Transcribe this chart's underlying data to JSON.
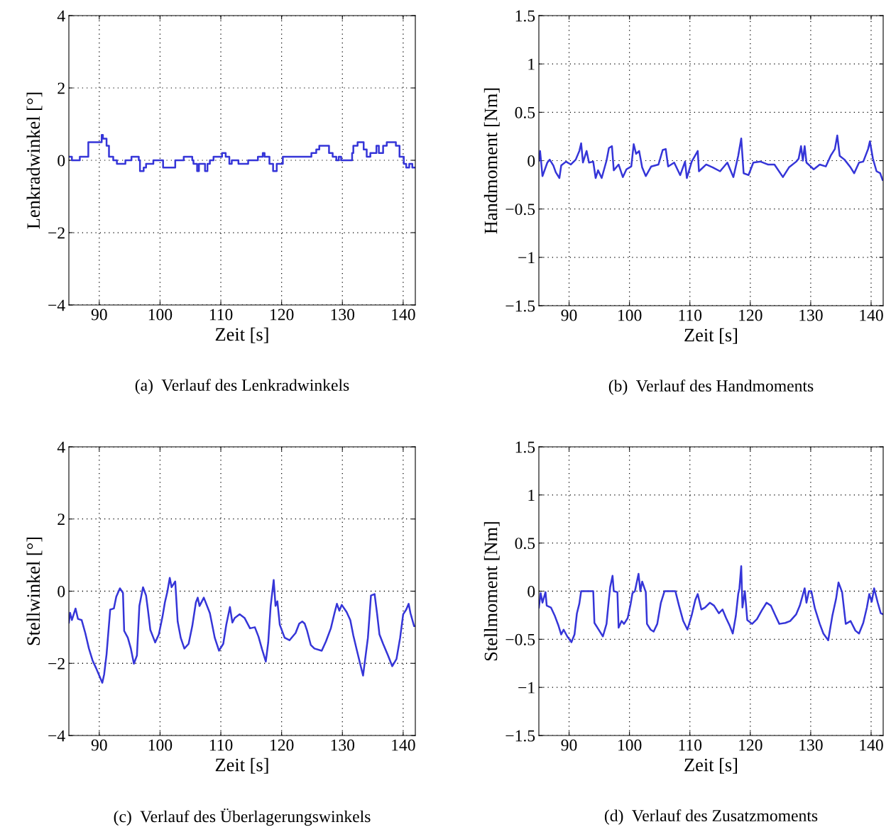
{
  "chart_data": [
    {
      "type": "step",
      "xlabel": "Zeit [s]",
      "ylabel": "Lenkradwinkel [°]",
      "annotations": [
        "(a)  Verlauf des Lenkradwinkels"
      ],
      "xlim": [
        85,
        142
      ],
      "xticks": [
        90,
        100,
        110,
        120,
        130,
        140
      ],
      "ylim": [
        -4,
        4
      ],
      "yticks": [
        -4,
        -2,
        0,
        2,
        4
      ],
      "grid": true,
      "series": [
        {
          "color": "#3535d8",
          "x": [
            85.0,
            85.5,
            86.8,
            88.2,
            90.4,
            90.6,
            91.2,
            91.6,
            92.3,
            92.9,
            94.3,
            95.3,
            96.5,
            96.7,
            97.3,
            97.7,
            98.9,
            100.5,
            102.5,
            103.9,
            105.3,
            105.5,
            106.1,
            106.4,
            107.4,
            107.8,
            108.2,
            108.8,
            110.2,
            110.8,
            111.4,
            111.8,
            112.9,
            114.5,
            116.1,
            116.9,
            117.2,
            118.0,
            118.6,
            119.2,
            120.2,
            124.9,
            125.7,
            126.2,
            127.8,
            128.4,
            129.0,
            129.4,
            129.8,
            131.6,
            131.8,
            132.5,
            133.5,
            134.0,
            134.6,
            135.6,
            136.0,
            136.7,
            137.3,
            138.8,
            139.4,
            140.1,
            140.5,
            141.0,
            141.5,
            142.0
          ],
          "values": [
            0.1,
            0,
            0.1,
            0.5,
            0.7,
            0.6,
            0.4,
            0.1,
            0,
            -0.1,
            0,
            0.1,
            0,
            -0.3,
            -0.2,
            -0.1,
            0,
            -0.2,
            0,
            0.1,
            0,
            -0.1,
            -0.3,
            -0.1,
            -0.3,
            -0.1,
            0,
            0.1,
            0.2,
            0.1,
            -0.1,
            0,
            -0.1,
            0,
            0.1,
            0.2,
            0.1,
            -0.1,
            -0.3,
            -0.1,
            0.1,
            0.2,
            0.3,
            0.4,
            0.2,
            0.1,
            0,
            0.1,
            0,
            0.2,
            0.4,
            0.5,
            0.3,
            0.1,
            0.2,
            0.4,
            0.2,
            0.4,
            0.5,
            0.4,
            0.1,
            -0.1,
            -0.2,
            -0.1,
            -0.2,
            -0.2
          ]
        }
      ]
    },
    {
      "type": "line",
      "xlabel": "Zeit [s]",
      "ylabel": "Handmoment [Nm]",
      "annotations": [
        "(b)  Verlauf des Handmoments"
      ],
      "xlim": [
        85,
        142
      ],
      "xticks": [
        90,
        100,
        110,
        120,
        130,
        140
      ],
      "ylim": [
        -1.5,
        1.5
      ],
      "yticks": [
        -1.5,
        -1,
        -0.5,
        0,
        0.5,
        1,
        1.5
      ],
      "grid": true,
      "series": [
        {
          "color": "#3535d8",
          "x": [
            85.0,
            85.2,
            85.6,
            86.4,
            86.8,
            87.4,
            87.8,
            88.4,
            88.7,
            89.5,
            90.3,
            91.1,
            91.7,
            92.0,
            92.3,
            92.9,
            93.3,
            94.0,
            94.4,
            94.8,
            95.4,
            96.2,
            96.6,
            97.1,
            97.4,
            98.2,
            98.9,
            99.5,
            100.3,
            100.7,
            101.1,
            101.6,
            102.1,
            102.7,
            103.6,
            104.8,
            105.5,
            106.0,
            106.4,
            107.4,
            108.4,
            109.2,
            109.5,
            110.3,
            111.3,
            111.5,
            112.7,
            113.8,
            115.0,
            116.2,
            117.2,
            118.0,
            118.5,
            118.9,
            119.7,
            120.5,
            121.7,
            122.9,
            124.0,
            125.4,
            126.4,
            127.6,
            128.0,
            128.4,
            128.7,
            129.0,
            129.3,
            130.5,
            131.5,
            132.5,
            133.3,
            134.0,
            134.4,
            134.8,
            135.6,
            136.6,
            137.2,
            138.0,
            138.7,
            139.5,
            139.8,
            140.3,
            140.9,
            141.5,
            141.9
          ],
          "values": [
            0,
            0.1,
            -0.16,
            -0.02,
            0.01,
            -0.05,
            -0.12,
            -0.18,
            -0.05,
            -0.01,
            -0.04,
            0.01,
            0.1,
            0.18,
            -0.02,
            0.1,
            -0.02,
            -0.01,
            -0.18,
            -0.1,
            -0.18,
            0,
            0.13,
            0.15,
            -0.1,
            -0.04,
            -0.17,
            -0.09,
            -0.06,
            0.17,
            0.07,
            0.1,
            -0.07,
            -0.16,
            -0.06,
            -0.04,
            0.11,
            0.12,
            -0.06,
            -0.02,
            -0.15,
            -0.01,
            -0.18,
            -0.01,
            0.1,
            -0.11,
            -0.04,
            -0.07,
            -0.11,
            -0.02,
            -0.17,
            0.05,
            0.23,
            -0.13,
            -0.15,
            -0.02,
            -0.01,
            -0.04,
            -0.04,
            -0.17,
            -0.07,
            -0.01,
            0.02,
            0.15,
            0,
            0.15,
            -0.02,
            -0.09,
            -0.04,
            -0.06,
            0.05,
            0.12,
            0.26,
            0.05,
            0.01,
            -0.07,
            -0.13,
            -0.02,
            -0.01,
            0.12,
            0.2,
            0.02,
            -0.11,
            -0.13,
            -0.2
          ]
        }
      ]
    },
    {
      "type": "line",
      "xlabel": "Zeit [s]",
      "ylabel": "Stellwinkel [°]",
      "annotations": [
        "(c)  Verlauf des Überlagerungswinkels"
      ],
      "xlim": [
        85,
        142
      ],
      "xticks": [
        90,
        100,
        110,
        120,
        130,
        140
      ],
      "ylim": [
        -4,
        4
      ],
      "yticks": [
        -4,
        -2,
        0,
        2,
        4
      ],
      "grid": true,
      "series": [
        {
          "color": "#3535d8",
          "x": [
            85.0,
            85.2,
            85.5,
            86.1,
            86.5,
            87.1,
            87.7,
            88.3,
            88.9,
            89.5,
            90.0,
            90.5,
            90.8,
            91.2,
            91.8,
            92.4,
            92.8,
            93.4,
            93.9,
            94.1,
            94.7,
            95.2,
            95.7,
            96.2,
            96.6,
            97.2,
            97.7,
            98.0,
            98.4,
            98.9,
            99.2,
            99.8,
            100.4,
            100.8,
            101.2,
            101.6,
            101.9,
            102.5,
            102.9,
            103.4,
            104.0,
            104.7,
            105.3,
            105.9,
            106.2,
            106.5,
            107.2,
            108.2,
            109.0,
            109.7,
            110.4,
            110.9,
            111.5,
            111.9,
            112.3,
            113.1,
            113.9,
            114.8,
            115.6,
            116.2,
            116.8,
            117.4,
            117.8,
            118.2,
            118.7,
            119.0,
            119.3,
            119.7,
            120.5,
            121.3,
            122.3,
            122.9,
            123.4,
            123.8,
            124.2,
            124.8,
            125.4,
            126.6,
            127.3,
            128.1,
            128.7,
            129.1,
            129.5,
            129.9,
            130.7,
            131.3,
            131.8,
            132.4,
            133.4,
            134.2,
            134.7,
            135.3,
            135.7,
            136.1,
            136.7,
            137.5,
            138.2,
            138.9,
            139.5,
            140.0,
            140.5,
            140.9,
            141.2,
            141.8,
            142.0
          ],
          "values": [
            -0.87,
            -0.6,
            -0.8,
            -0.48,
            -0.77,
            -0.8,
            -1.16,
            -1.59,
            -1.92,
            -2.14,
            -2.34,
            -2.54,
            -2.31,
            -1.75,
            -0.51,
            -0.48,
            -0.15,
            0.08,
            -0.05,
            -1.1,
            -1.29,
            -1.59,
            -2.01,
            -1.78,
            -0.41,
            0.11,
            -0.12,
            -0.51,
            -1.07,
            -1.29,
            -1.42,
            -1.2,
            -0.71,
            -0.31,
            -0.02,
            0.37,
            0.11,
            0.27,
            -0.84,
            -1.29,
            -1.59,
            -1.46,
            -0.97,
            -0.31,
            -0.18,
            -0.41,
            -0.18,
            -0.61,
            -1.29,
            -1.65,
            -1.46,
            -0.93,
            -0.44,
            -0.87,
            -0.74,
            -0.64,
            -0.74,
            -1.03,
            -1.0,
            -1.26,
            -1.62,
            -1.95,
            -1.42,
            -0.41,
            0.31,
            -0.41,
            -0.28,
            -0.93,
            -1.29,
            -1.36,
            -1.16,
            -0.9,
            -0.84,
            -0.9,
            -1.1,
            -1.49,
            -1.59,
            -1.65,
            -1.39,
            -1.03,
            -0.61,
            -0.35,
            -0.54,
            -0.38,
            -0.58,
            -0.8,
            -1.23,
            -1.65,
            -2.34,
            -1.29,
            -0.12,
            -0.08,
            -0.61,
            -1.2,
            -1.46,
            -1.78,
            -2.08,
            -1.88,
            -1.29,
            -0.64,
            -0.51,
            -0.35,
            -0.61,
            -0.97,
            -0.97
          ]
        }
      ]
    },
    {
      "type": "line",
      "xlabel": "Zeit [s]",
      "ylabel": "Stellmoment [Nm]",
      "annotations": [
        "(d)  Verlauf des Zusatzmoments"
      ],
      "xlim": [
        85,
        142
      ],
      "xticks": [
        90,
        100,
        110,
        120,
        130,
        140
      ],
      "ylim": [
        -1.5,
        1.5
      ],
      "yticks": [
        -1.5,
        -1,
        -0.5,
        0,
        0.5,
        1,
        1.5
      ],
      "grid": true,
      "series": [
        {
          "color": "#3535d8",
          "x": [
            85.0,
            85.3,
            85.6,
            86.1,
            86.3,
            87.0,
            87.6,
            88.2,
            88.7,
            89.1,
            89.7,
            90.4,
            90.9,
            91.3,
            91.7,
            92.0,
            94.0,
            94.2,
            94.8,
            95.6,
            96.2,
            96.6,
            96.8,
            97.2,
            97.4,
            98.0,
            98.2,
            98.7,
            99.1,
            99.7,
            100.2,
            100.5,
            100.9,
            101.5,
            101.8,
            102.1,
            102.7,
            102.9,
            103.5,
            104.0,
            104.6,
            105.2,
            105.8,
            107.6,
            108.2,
            108.9,
            109.6,
            110.3,
            110.9,
            111.3,
            111.9,
            112.5,
            113.3,
            114.0,
            114.8,
            115.4,
            116.0,
            116.6,
            117.1,
            117.6,
            118.0,
            118.2,
            118.5,
            118.7,
            119.1,
            119.5,
            120.3,
            121.1,
            121.9,
            122.7,
            123.4,
            124.2,
            124.8,
            125.8,
            126.6,
            127.6,
            128.2,
            129.0,
            129.3,
            129.7,
            130.1,
            130.7,
            131.5,
            132.1,
            132.9,
            133.6,
            134.2,
            134.6,
            135.2,
            135.8,
            136.6,
            137.4,
            138.0,
            138.7,
            139.3,
            139.7,
            140.1,
            140.5,
            141.1,
            141.6,
            142.0
          ],
          "values": [
            -0.17,
            -0.02,
            -0.12,
            -0.01,
            -0.15,
            -0.17,
            -0.25,
            -0.35,
            -0.45,
            -0.4,
            -0.47,
            -0.53,
            -0.45,
            -0.23,
            -0.13,
            0,
            0,
            -0.33,
            -0.39,
            -0.47,
            -0.34,
            -0.08,
            0.04,
            0.16,
            0,
            -0.01,
            -0.38,
            -0.31,
            -0.34,
            -0.28,
            -0.13,
            -0.02,
            0,
            0.18,
            0,
            0.1,
            -0.01,
            -0.34,
            -0.4,
            -0.42,
            -0.34,
            -0.12,
            0,
            0,
            -0.15,
            -0.31,
            -0.4,
            -0.25,
            -0.09,
            -0.03,
            -0.19,
            -0.17,
            -0.12,
            -0.15,
            -0.23,
            -0.19,
            -0.28,
            -0.36,
            -0.44,
            -0.26,
            -0.03,
            0.03,
            0.26,
            -0.17,
            0,
            -0.3,
            -0.34,
            -0.29,
            -0.2,
            -0.12,
            -0.15,
            -0.26,
            -0.34,
            -0.33,
            -0.31,
            -0.24,
            -0.15,
            0.03,
            -0.12,
            0,
            0,
            -0.18,
            -0.34,
            -0.44,
            -0.51,
            -0.25,
            -0.08,
            0.09,
            -0.01,
            -0.34,
            -0.31,
            -0.41,
            -0.44,
            -0.33,
            -0.17,
            -0.03,
            -0.11,
            0.03,
            -0.12,
            -0.23,
            -0.24
          ]
        }
      ]
    }
  ]
}
